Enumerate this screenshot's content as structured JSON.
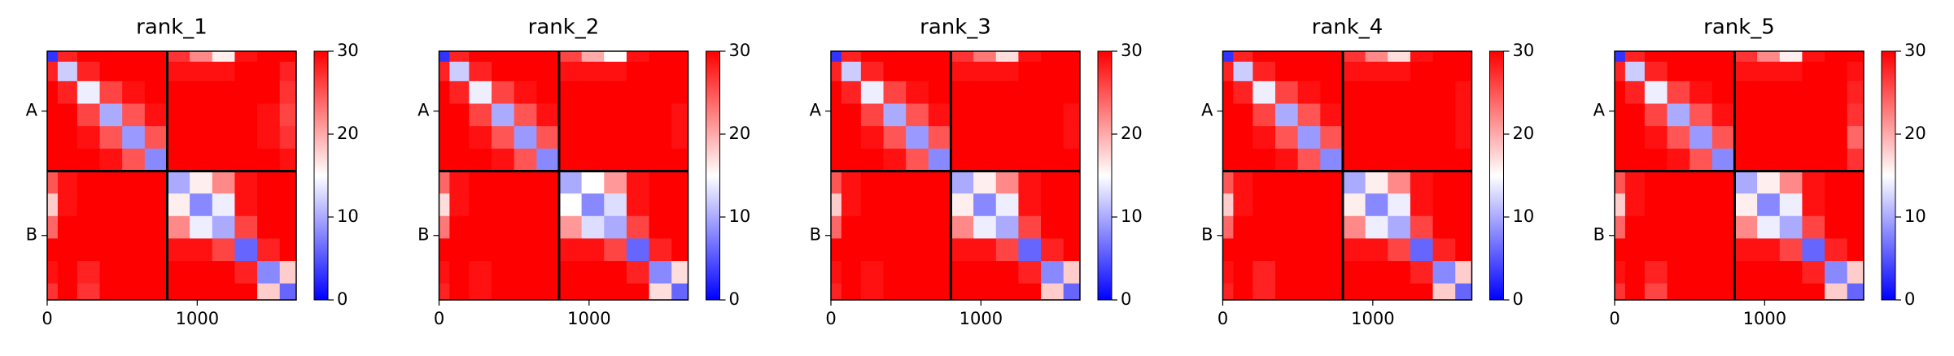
{
  "chart_data": [
    {
      "type": "heatmap",
      "title": "rank_1",
      "colormap": "bwr",
      "clim": [
        0,
        30
      ],
      "cticks": [
        0,
        10,
        20,
        30
      ],
      "x_edges": [
        0,
        70,
        200,
        350,
        500,
        650,
        800,
        950,
        1100,
        1250,
        1400,
        1550,
        1660
      ],
      "xlim": [
        0,
        1660
      ],
      "ylim": [
        1660,
        0
      ],
      "xticks": [
        0,
        1000
      ],
      "yticks": [
        {
          "value": 400,
          "label": "A"
        },
        {
          "value": 1230,
          "label": "B"
        }
      ],
      "boundaries": [
        800
      ],
      "values": [
        [
          3,
          28,
          30,
          30,
          30,
          30,
          27,
          22,
          16,
          29,
          30,
          30
        ],
        [
          28,
          12,
          28,
          30,
          30,
          30,
          29,
          29,
          29,
          30,
          30,
          28
        ],
        [
          30,
          28,
          14,
          26,
          29,
          30,
          30,
          30,
          30,
          30,
          30,
          27
        ],
        [
          30,
          30,
          26,
          10,
          25,
          29,
          30,
          30,
          30,
          30,
          29,
          26
        ],
        [
          30,
          30,
          29,
          25,
          9,
          25,
          30,
          30,
          30,
          30,
          29,
          27
        ],
        [
          30,
          30,
          30,
          29,
          25,
          8,
          30,
          30,
          30,
          30,
          30,
          29
        ],
        [
          25,
          29,
          30,
          30,
          30,
          30,
          10,
          16,
          22,
          29,
          30,
          30
        ],
        [
          18,
          29,
          30,
          30,
          30,
          30,
          16,
          8,
          14,
          29,
          30,
          30
        ],
        [
          24,
          30,
          30,
          30,
          30,
          30,
          22,
          14,
          10,
          26,
          30,
          30
        ],
        [
          30,
          30,
          30,
          30,
          30,
          30,
          29,
          29,
          26,
          6,
          28,
          30
        ],
        [
          29,
          30,
          28,
          30,
          30,
          30,
          30,
          30,
          30,
          28,
          8,
          18
        ],
        [
          27,
          30,
          27,
          30,
          30,
          30,
          30,
          30,
          30,
          30,
          18,
          6
        ]
      ]
    },
    {
      "type": "heatmap",
      "title": "rank_2",
      "colormap": "bwr",
      "clim": [
        0,
        30
      ],
      "cticks": [
        0,
        10,
        20,
        30
      ],
      "x_edges": [
        0,
        70,
        200,
        350,
        500,
        650,
        800,
        950,
        1100,
        1250,
        1400,
        1550,
        1660
      ],
      "xlim": [
        0,
        1660
      ],
      "ylim": [
        1660,
        0
      ],
      "xticks": [
        0,
        1000
      ],
      "yticks": [
        {
          "value": 400,
          "label": "A"
        },
        {
          "value": 1230,
          "label": "B"
        }
      ],
      "boundaries": [
        800
      ],
      "values": [
        [
          3,
          28,
          30,
          30,
          30,
          30,
          26,
          20,
          15,
          29,
          30,
          30
        ],
        [
          28,
          12,
          28,
          30,
          30,
          30,
          29,
          29,
          29,
          30,
          30,
          30
        ],
        [
          30,
          28,
          14,
          26,
          29,
          30,
          30,
          30,
          30,
          30,
          30,
          30
        ],
        [
          30,
          30,
          26,
          10,
          25,
          29,
          30,
          30,
          30,
          30,
          30,
          29
        ],
        [
          30,
          30,
          29,
          25,
          9,
          25,
          30,
          30,
          30,
          30,
          30,
          29
        ],
        [
          30,
          30,
          30,
          29,
          25,
          8,
          30,
          30,
          30,
          30,
          30,
          30
        ],
        [
          24,
          29,
          30,
          30,
          30,
          30,
          10,
          15,
          21,
          29,
          30,
          30
        ],
        [
          17,
          29,
          30,
          30,
          30,
          30,
          15,
          8,
          13,
          29,
          30,
          30
        ],
        [
          23,
          30,
          30,
          30,
          30,
          30,
          21,
          13,
          10,
          26,
          30,
          30
        ],
        [
          30,
          30,
          30,
          30,
          30,
          30,
          29,
          29,
          26,
          6,
          28,
          30
        ],
        [
          29,
          30,
          29,
          30,
          30,
          30,
          30,
          30,
          30,
          28,
          8,
          17
        ],
        [
          28,
          30,
          29,
          30,
          30,
          30,
          30,
          30,
          30,
          30,
          17,
          6
        ]
      ]
    },
    {
      "type": "heatmap",
      "title": "rank_3",
      "colormap": "bwr",
      "clim": [
        0,
        30
      ],
      "cticks": [
        0,
        10,
        20,
        30
      ],
      "x_edges": [
        0,
        70,
        200,
        350,
        500,
        650,
        800,
        950,
        1100,
        1250,
        1400,
        1550,
        1660
      ],
      "xlim": [
        0,
        1660
      ],
      "ylim": [
        1660,
        0
      ],
      "xticks": [
        0,
        1000
      ],
      "yticks": [
        {
          "value": 400,
          "label": "A"
        },
        {
          "value": 1230,
          "label": "B"
        }
      ],
      "boundaries": [
        800
      ],
      "values": [
        [
          3,
          28,
          30,
          30,
          30,
          30,
          27,
          23,
          17,
          29,
          30,
          30
        ],
        [
          28,
          12,
          28,
          30,
          30,
          30,
          29,
          29,
          29,
          30,
          30,
          30
        ],
        [
          30,
          28,
          14,
          26,
          29,
          30,
          30,
          30,
          30,
          30,
          30,
          30
        ],
        [
          30,
          30,
          26,
          10,
          25,
          29,
          30,
          30,
          30,
          30,
          30,
          29
        ],
        [
          30,
          30,
          29,
          25,
          9,
          25,
          30,
          30,
          30,
          30,
          30,
          29
        ],
        [
          30,
          30,
          30,
          29,
          25,
          8,
          30,
          30,
          30,
          30,
          30,
          30
        ],
        [
          25,
          29,
          30,
          30,
          30,
          30,
          10,
          16,
          22,
          29,
          30,
          30
        ],
        [
          18,
          29,
          30,
          30,
          30,
          30,
          16,
          8,
          14,
          29,
          30,
          30
        ],
        [
          24,
          30,
          30,
          30,
          30,
          30,
          22,
          14,
          10,
          26,
          30,
          30
        ],
        [
          30,
          30,
          30,
          30,
          30,
          30,
          29,
          29,
          26,
          6,
          28,
          30
        ],
        [
          29,
          30,
          29,
          30,
          30,
          30,
          30,
          30,
          30,
          28,
          8,
          18
        ],
        [
          28,
          30,
          29,
          30,
          30,
          30,
          30,
          30,
          30,
          30,
          18,
          6
        ]
      ]
    },
    {
      "type": "heatmap",
      "title": "rank_4",
      "colormap": "bwr",
      "clim": [
        0,
        30
      ],
      "cticks": [
        0,
        10,
        20,
        30
      ],
      "x_edges": [
        0,
        70,
        200,
        350,
        500,
        650,
        800,
        950,
        1100,
        1250,
        1400,
        1550,
        1660
      ],
      "xlim": [
        0,
        1660
      ],
      "ylim": [
        1660,
        0
      ],
      "xticks": [
        0,
        1000
      ],
      "yticks": [
        {
          "value": 400,
          "label": "A"
        },
        {
          "value": 1230,
          "label": "B"
        }
      ],
      "boundaries": [
        800
      ],
      "values": [
        [
          3,
          28,
          30,
          30,
          30,
          30,
          27,
          22,
          17,
          29,
          30,
          30
        ],
        [
          28,
          12,
          28,
          30,
          30,
          30,
          29,
          29,
          29,
          30,
          30,
          30
        ],
        [
          30,
          28,
          14,
          26,
          29,
          30,
          30,
          30,
          30,
          30,
          30,
          29
        ],
        [
          30,
          30,
          26,
          10,
          25,
          29,
          30,
          30,
          30,
          30,
          30,
          29
        ],
        [
          30,
          30,
          29,
          25,
          9,
          25,
          30,
          30,
          30,
          30,
          30,
          29
        ],
        [
          30,
          30,
          30,
          29,
          25,
          8,
          30,
          30,
          30,
          30,
          30,
          30
        ],
        [
          25,
          29,
          30,
          30,
          30,
          30,
          10,
          16,
          22,
          29,
          30,
          30
        ],
        [
          18,
          29,
          30,
          30,
          30,
          30,
          16,
          8,
          14,
          29,
          30,
          30
        ],
        [
          24,
          30,
          30,
          30,
          30,
          30,
          22,
          14,
          10,
          26,
          30,
          30
        ],
        [
          30,
          30,
          30,
          30,
          30,
          30,
          29,
          29,
          26,
          6,
          28,
          30
        ],
        [
          29,
          30,
          28,
          30,
          30,
          30,
          30,
          30,
          30,
          28,
          8,
          18
        ],
        [
          28,
          30,
          28,
          30,
          30,
          30,
          30,
          30,
          30,
          30,
          18,
          6
        ]
      ]
    },
    {
      "type": "heatmap",
      "title": "rank_5",
      "colormap": "bwr",
      "clim": [
        0,
        30
      ],
      "cticks": [
        0,
        10,
        20,
        30
      ],
      "x_edges": [
        0,
        70,
        200,
        350,
        500,
        650,
        800,
        950,
        1100,
        1250,
        1400,
        1550,
        1660
      ],
      "xlim": [
        0,
        1660
      ],
      "ylim": [
        1660,
        0
      ],
      "xticks": [
        0,
        1000
      ],
      "yticks": [
        {
          "value": 400,
          "label": "A"
        },
        {
          "value": 1230,
          "label": "B"
        }
      ],
      "boundaries": [
        800
      ],
      "values": [
        [
          3,
          28,
          30,
          30,
          30,
          30,
          27,
          22,
          16,
          29,
          30,
          30
        ],
        [
          28,
          12,
          28,
          30,
          30,
          30,
          29,
          29,
          29,
          30,
          30,
          29
        ],
        [
          30,
          28,
          14,
          26,
          29,
          30,
          30,
          30,
          30,
          30,
          30,
          28
        ],
        [
          30,
          30,
          26,
          10,
          25,
          29,
          30,
          30,
          30,
          30,
          30,
          27
        ],
        [
          30,
          30,
          29,
          25,
          9,
          25,
          30,
          30,
          30,
          30,
          30,
          24
        ],
        [
          30,
          30,
          30,
          29,
          25,
          8,
          30,
          30,
          30,
          30,
          30,
          27
        ],
        [
          25,
          29,
          30,
          30,
          30,
          30,
          10,
          16,
          22,
          29,
          30,
          30
        ],
        [
          18,
          29,
          30,
          30,
          30,
          30,
          16,
          8,
          14,
          29,
          30,
          30
        ],
        [
          24,
          30,
          30,
          30,
          30,
          30,
          22,
          14,
          10,
          26,
          30,
          30
        ],
        [
          30,
          30,
          30,
          30,
          30,
          30,
          29,
          29,
          26,
          6,
          28,
          30
        ],
        [
          29,
          30,
          28,
          30,
          30,
          30,
          30,
          30,
          30,
          28,
          8,
          18
        ],
        [
          27,
          30,
          26,
          30,
          30,
          30,
          30,
          30,
          30,
          30,
          18,
          6
        ]
      ]
    }
  ]
}
